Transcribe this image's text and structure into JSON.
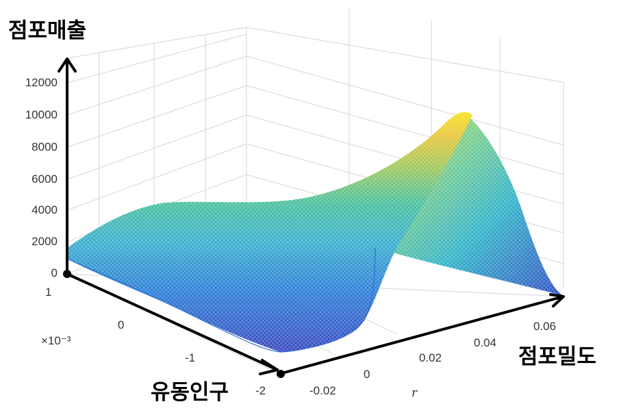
{
  "chart_data": {
    "type": "surface",
    "zlabel": "점포매출",
    "xlabel": "점포밀도",
    "ylabel": "유동인구",
    "x_symbol": "r",
    "y_exponent": "×10⁻³",
    "x_ticks": [
      "-0.02",
      "0",
      "0.02",
      "0.04",
      "0.06"
    ],
    "x_tick_values": [
      -0.02,
      0,
      0.02,
      0.04,
      0.06
    ],
    "y_ticks": [
      "1",
      "0",
      "-1",
      "-2"
    ],
    "y_tick_values": [
      0.001,
      0,
      -0.001,
      -0.002
    ],
    "z_ticks": [
      "0",
      "2000",
      "4000",
      "6000",
      "8000",
      "10000",
      "12000"
    ],
    "z_tick_values": [
      0,
      2000,
      4000,
      6000,
      8000,
      10000,
      12000
    ],
    "xlim": [
      -0.025,
      0.07
    ],
    "ylim": [
      -0.002,
      0.001
    ],
    "zlim": [
      0,
      13000
    ],
    "colormap": "parula",
    "grid": true,
    "surface_samples": {
      "x": [
        -0.025,
        0.0,
        0.02,
        0.04,
        0.052,
        0.065,
        0.07
      ],
      "y_near_front": [
        1400,
        1600,
        2800,
        6400,
        10000,
        4800,
        400
      ],
      "y_back": [
        4200,
        4500,
        5000,
        6500,
        10000,
        5000,
        400
      ],
      "peak": {
        "x": 0.052,
        "y": 0.001,
        "z": 10000
      }
    }
  }
}
